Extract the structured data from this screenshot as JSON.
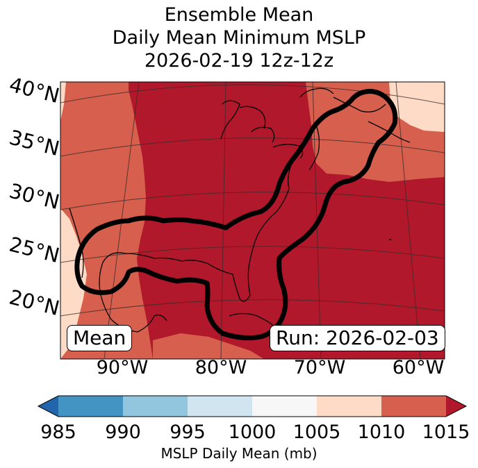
{
  "title": {
    "line1": "Ensemble Mean",
    "line2": "Daily Mean Minimum MSLP",
    "line3": "2026-02-19 12z-12z"
  },
  "map": {
    "lat_labels": [
      "40°N",
      "35°N",
      "30°N",
      "25°N",
      "20°N"
    ],
    "lon_labels": [
      "90°W",
      "80°W",
      "70°W",
      "60°W"
    ],
    "mean_box": "Mean",
    "run_box": "Run: 2026-02-03",
    "colors": {
      "fill_1015": "#b2182b",
      "fill_1010": "#d6604d",
      "fill_1005": "#fddbc7",
      "contour": "#000000",
      "coast": "#000000"
    }
  },
  "colorbar": {
    "ticks": [
      "985",
      "990",
      "995",
      "1000",
      "1005",
      "1010",
      "1015"
    ],
    "colors": [
      "#2166ac",
      "#4393c3",
      "#92c5de",
      "#d1e5f0",
      "#f7f7f7",
      "#fddbc7",
      "#d6604d",
      "#b2182b"
    ],
    "label": "MSLP Daily Mean (mb)"
  }
}
